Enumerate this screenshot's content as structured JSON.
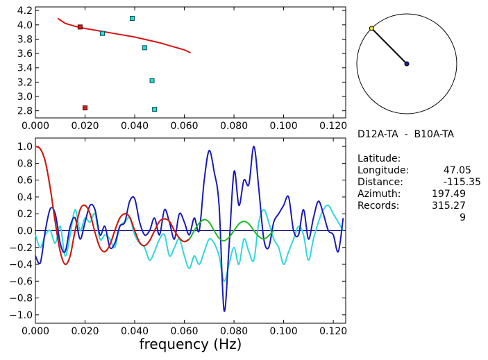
{
  "station": {
    "pair": "D12A-TA  -  B10A-TA",
    "rows": [
      {
        "label": "Latitude:",
        "value": "47.05"
      },
      {
        "label": "Longitude:",
        "value": "-115.35"
      },
      {
        "label": "Distance:",
        "value": "197.49"
      },
      {
        "label": "Azimuth:",
        "value": "315.27"
      },
      {
        "label": "Records:",
        "value": "9"
      }
    ]
  },
  "chart_data": [
    {
      "type": "scatter",
      "title": "",
      "xlabel": "",
      "ylabel": "",
      "xlim": [
        0,
        0.125
      ],
      "ylim": [
        2.7,
        4.25
      ],
      "xticks": [
        "0.000",
        "0.020",
        "0.040",
        "0.060",
        "0.080",
        "0.100",
        "0.120"
      ],
      "yticks": [
        "2.8",
        "3.0",
        "3.2",
        "3.4",
        "3.6",
        "3.8",
        "4.0",
        "4.2"
      ],
      "colors": {
        "cyan_points": "#30d8d8",
        "red_points": "#cc2020",
        "fit_line": "#dd1010"
      },
      "series": [
        {
          "values": [
            [
              0.027,
              3.88
            ],
            [
              0.039,
              4.09
            ],
            [
              0.044,
              3.68
            ],
            [
              0.047,
              3.22
            ],
            [
              0.048,
              2.82
            ]
          ]
        },
        {
          "values": [
            [
              0.018,
              3.97
            ],
            [
              0.02,
              2.84
            ]
          ]
        },
        {
          "values": [
            [
              0.009,
              4.09
            ],
            [
              0.012,
              4.02
            ],
            [
              0.016,
              3.98
            ],
            [
              0.02,
              3.95
            ],
            [
              0.025,
              3.92
            ],
            [
              0.03,
              3.89
            ],
            [
              0.035,
              3.86
            ],
            [
              0.04,
              3.83
            ],
            [
              0.045,
              3.79
            ],
            [
              0.05,
              3.75
            ],
            [
              0.055,
              3.7
            ],
            [
              0.06,
              3.65
            ],
            [
              0.0625,
              3.61
            ]
          ]
        }
      ]
    },
    {
      "type": "line",
      "title": "",
      "xlabel": "frequency (Hz)",
      "ylabel": "",
      "xlim": [
        0,
        0.125
      ],
      "ylim": [
        -1.1,
        1.1
      ],
      "xticks": [
        "0.000",
        "0.020",
        "0.040",
        "0.060",
        "0.080",
        "0.100",
        "0.120"
      ],
      "yticks": [
        "1.0",
        "0.8",
        "0.6",
        "0.4",
        "0.2",
        "0.0",
        "-0.2",
        "-0.4",
        "-0.6",
        "-0.8",
        "-1.0"
      ],
      "colors": {
        "blue": "#1a1ab8",
        "cyan": "#30d8d8",
        "green": "#20b820",
        "red": "#dd1010",
        "zero_line": "#000080"
      },
      "series": [
        {
          "x": [
            0,
            0.002,
            0.004,
            0.006,
            0.008,
            0.01,
            0.012,
            0.014,
            0.016,
            0.018,
            0.02,
            0.022,
            0.024,
            0.026,
            0.028,
            0.03,
            0.032,
            0.034,
            0.036,
            0.038,
            0.04,
            0.042,
            0.044,
            0.046,
            0.048,
            0.05,
            0.052,
            0.054,
            0.056,
            0.058,
            0.06,
            0.062,
            0.064,
            0.066,
            0.068,
            0.07,
            0.072,
            0.074,
            0.076,
            0.078,
            0.08,
            0.082,
            0.084,
            0.086,
            0.088,
            0.09,
            0.092,
            0.094,
            0.096,
            0.098,
            0.1,
            0.102,
            0.104,
            0.106,
            0.108,
            0.11,
            0.112,
            0.114,
            0.116,
            0.118,
            0.12,
            0.122,
            0.124
          ],
          "values": [
            -0.3,
            -0.38,
            0.0,
            0.26,
            0.2,
            -0.15,
            -0.25,
            0.05,
            0.15,
            -0.1,
            0.1,
            0.3,
            0.25,
            -0.05,
            0.05,
            -0.2,
            -0.15,
            0.05,
            0.1,
            0.35,
            0.38,
            0.1,
            -0.05,
            0.0,
            0.15,
            -0.05,
            0.25,
            0.1,
            -0.1,
            0.2,
            0.1,
            -0.05,
            0.15,
            0.0,
            0.6,
            0.95,
            0.7,
            0.3,
            -0.95,
            -0.2,
            0.7,
            0.3,
            0.6,
            0.55,
            1.0,
            0.5,
            -0.1,
            -0.2,
            0.1,
            0.2,
            0.3,
            0.4,
            0.0,
            -0.05,
            0.25,
            -0.1,
            0.15,
            0.35,
            0.2,
            0.0,
            -0.05,
            -0.25,
            0.15
          ]
        },
        {
          "x": [
            0,
            0.002,
            0.004,
            0.006,
            0.008,
            0.01,
            0.012,
            0.014,
            0.016,
            0.018,
            0.02,
            0.022,
            0.024,
            0.026,
            0.028,
            0.03,
            0.032,
            0.034,
            0.036,
            0.038,
            0.04,
            0.042,
            0.044,
            0.046,
            0.048,
            0.05,
            0.052,
            0.054,
            0.056,
            0.058,
            0.06,
            0.062,
            0.064,
            0.066,
            0.068,
            0.07,
            0.072,
            0.074,
            0.076,
            0.078,
            0.08,
            0.082,
            0.084,
            0.086,
            0.088,
            0.09,
            0.092,
            0.094,
            0.096,
            0.098,
            0.1,
            0.102,
            0.104,
            0.106,
            0.108,
            0.11,
            0.112,
            0.114,
            0.116,
            0.118,
            0.12,
            0.122,
            0.124
          ],
          "values": [
            -0.05,
            -0.2,
            -0.05,
            0.0,
            -0.15,
            0.05,
            -0.3,
            -0.05,
            0.25,
            0.0,
            0.15,
            0.1,
            0.2,
            -0.1,
            -0.05,
            -0.1,
            -0.2,
            0.05,
            0.1,
            0.15,
            -0.05,
            -0.15,
            -0.2,
            -0.35,
            -0.25,
            -0.1,
            -0.05,
            -0.3,
            -0.2,
            -0.1,
            -0.3,
            -0.45,
            -0.3,
            -0.4,
            -0.25,
            -0.1,
            -0.15,
            -0.3,
            -0.6,
            -0.4,
            -0.2,
            -0.4,
            -0.1,
            -0.25,
            -0.35,
            0.1,
            0.25,
            0.1,
            -0.1,
            -0.2,
            -0.4,
            -0.25,
            -0.1,
            0.05,
            -0.05,
            -0.35,
            -0.1,
            0.1,
            0.25,
            0.3,
            0.2,
            0.1,
            0.0
          ]
        },
        {
          "x": [
            0,
            0.002,
            0.004,
            0.006,
            0.008,
            0.01,
            0.012,
            0.014,
            0.016,
            0.018,
            0.02,
            0.022,
            0.024,
            0.026,
            0.028,
            0.03,
            0.032,
            0.034,
            0.036,
            0.038,
            0.04,
            0.042,
            0.044,
            0.046,
            0.048,
            0.05,
            0.052,
            0.054,
            0.056,
            0.058,
            0.06,
            0.062,
            0.064,
            0.066,
            0.068,
            0.07,
            0.072,
            0.074,
            0.076,
            0.078,
            0.08,
            0.082,
            0.084,
            0.086,
            0.088,
            0.09,
            0.092,
            0.094,
            0.096
          ],
          "values": [
            1.0,
            0.97,
            0.82,
            0.5,
            0.1,
            -0.25,
            -0.4,
            -0.3,
            0.0,
            0.25,
            0.3,
            0.2,
            -0.02,
            -0.2,
            -0.25,
            -0.17,
            0.0,
            0.15,
            0.2,
            0.16,
            0.0,
            -0.14,
            -0.18,
            -0.12,
            0.0,
            0.11,
            0.14,
            0.11,
            0.0,
            -0.09,
            -0.13,
            -0.1,
            0.0,
            0.09,
            0.13,
            0.1,
            0.0,
            -0.09,
            -0.12,
            -0.08,
            0.0,
            0.08,
            0.11,
            0.08,
            0.0,
            -0.07,
            -0.1,
            -0.06,
            0.0
          ]
        },
        {
          "x": [
            0,
            0.002,
            0.004,
            0.006,
            0.008,
            0.01,
            0.012,
            0.014,
            0.016,
            0.018,
            0.02,
            0.022,
            0.024,
            0.026,
            0.028,
            0.03,
            0.032,
            0.034,
            0.036,
            0.038,
            0.04,
            0.042,
            0.044,
            0.046,
            0.048,
            0.05,
            0.052,
            0.054,
            0.056,
            0.058,
            0.06,
            0.062
          ],
          "values": [
            1.0,
            0.97,
            0.82,
            0.5,
            0.1,
            -0.25,
            -0.4,
            -0.3,
            0.0,
            0.25,
            0.3,
            0.2,
            -0.02,
            -0.2,
            -0.25,
            -0.17,
            0.0,
            0.15,
            0.2,
            0.16,
            0.0,
            -0.14,
            -0.18,
            -0.12,
            0.0,
            0.11,
            0.14,
            0.11,
            0.0,
            -0.09,
            -0.13,
            -0.1
          ]
        }
      ]
    }
  ],
  "azimuth_dial": {
    "azimuth_deg": 315.27,
    "end_marker_color": "#e8e020",
    "center_color": "#1a1ab8"
  }
}
